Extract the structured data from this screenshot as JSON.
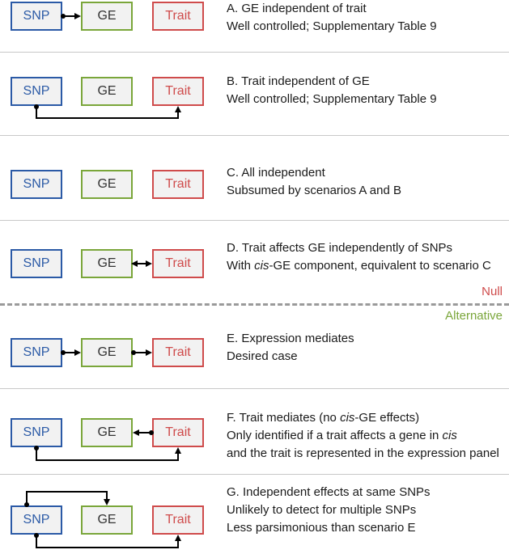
{
  "labels": {
    "snp": "SNP",
    "ge": "GE",
    "trait": "Trait"
  },
  "colors": {
    "snp": "#2b5aa6",
    "ge": "#7aa63a",
    "trait": "#cf4b4b",
    "null_label": "#cf4b4b",
    "alt_label": "#7aa63a"
  },
  "divider": {
    "null_label": "Null",
    "alt_label": "Alternative"
  },
  "scenarios": [
    {
      "title": "A. GE independent of trait",
      "lines": [
        "Well controlled; Supplementary Table 9"
      ]
    },
    {
      "title": "B. Trait independent of GE",
      "lines": [
        "Well controlled; Supplementary Table 9"
      ]
    },
    {
      "title": "C. All independent",
      "lines": [
        "Subsumed by scenarios A and B"
      ]
    },
    {
      "title": "D. Trait affects GE independently of SNPs",
      "lines": [
        "With cis-GE component, equivalent to scenario C"
      ]
    },
    {
      "title": "E. Expression mediates",
      "lines": [
        "Desired case"
      ]
    },
    {
      "title": "F. Trait mediates (no cis-GE effects)",
      "lines": [
        "Only identified if a trait affects a gene in cis",
        "and the trait is represented in the expression panel"
      ]
    },
    {
      "title": "G. Independent effects at same SNPs",
      "lines": [
        "Unlikely to detect for multiple SNPs",
        "Less parsimonious than scenario E"
      ]
    }
  ]
}
